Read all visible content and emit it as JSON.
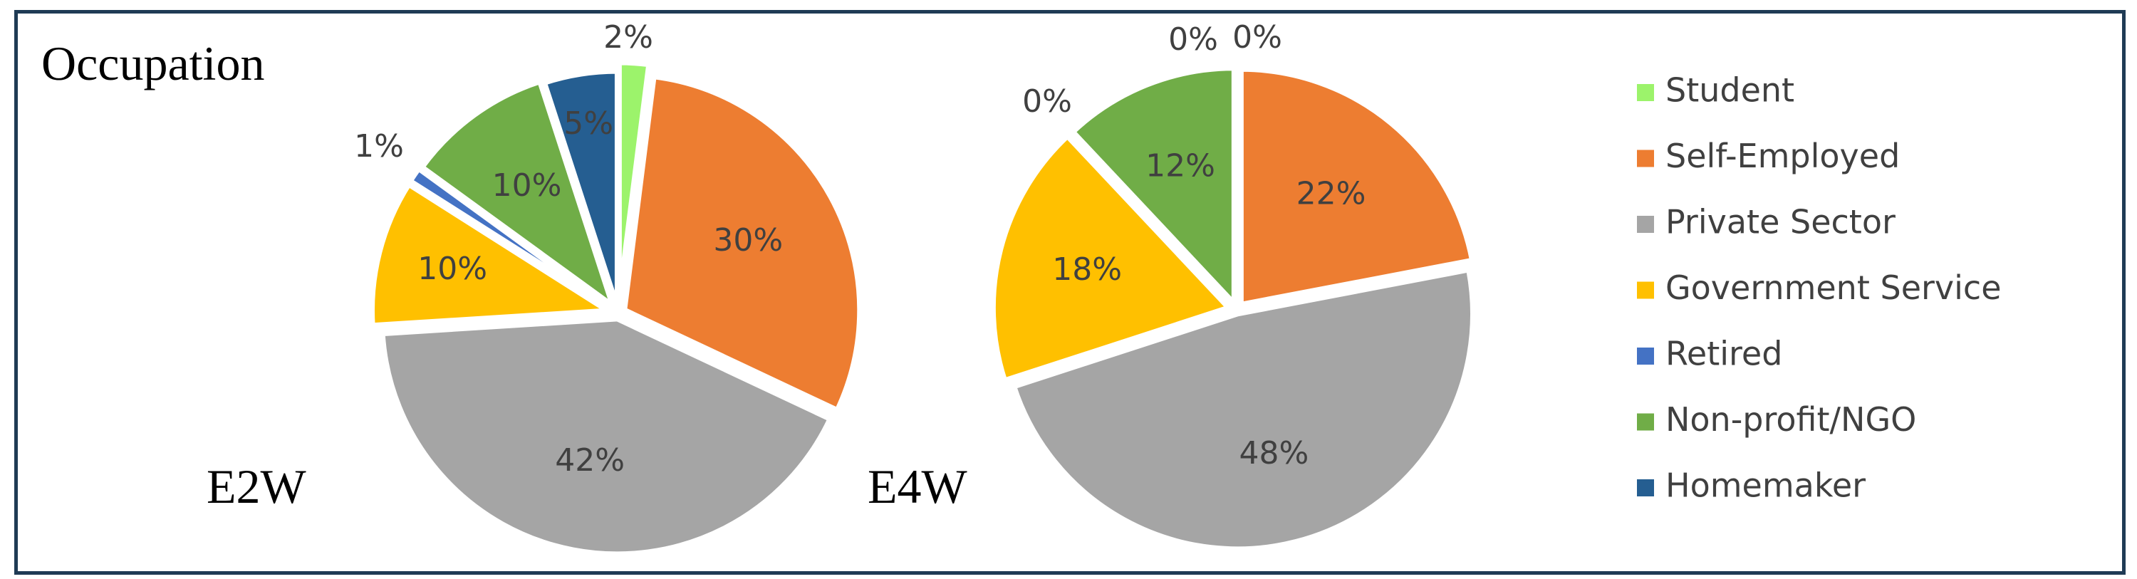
{
  "chart_data": {
    "type": "pie",
    "title": "Occupation",
    "categories": [
      "Student",
      "Self-Employed",
      "Private Sector",
      "Government Service",
      "Retired",
      "Non-profit/NGO",
      "Homemaker"
    ],
    "colors": [
      "#9cf36b",
      "#ed7d31",
      "#a5a5a5",
      "#ffc000",
      "#4472c4",
      "#70ad47",
      "#255e91"
    ],
    "legend_position": "right",
    "series": [
      {
        "name": "E2W",
        "values": [
          2,
          30,
          42,
          10,
          1,
          10,
          5
        ],
        "labels": [
          "2%",
          "30%",
          "42%",
          "10%",
          "1%",
          "10%",
          "5%"
        ]
      },
      {
        "name": "E4W",
        "values": [
          0,
          22,
          48,
          18,
          0,
          12,
          0
        ],
        "labels": [
          "0%",
          "22%",
          "48%",
          "18%",
          "0%",
          "12%",
          "0%"
        ]
      }
    ]
  }
}
